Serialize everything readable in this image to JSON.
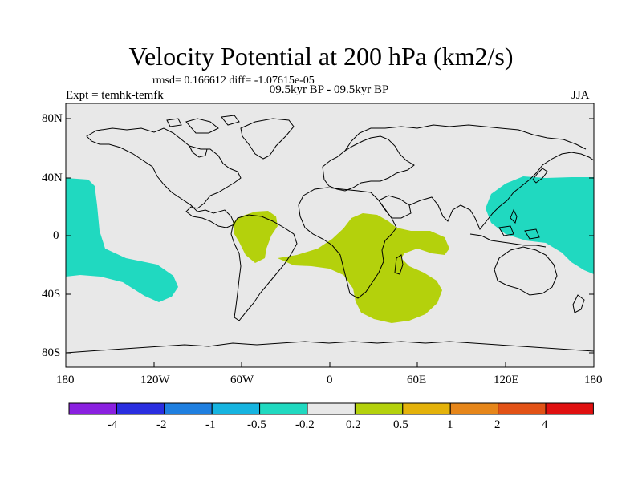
{
  "title": "Velocity Potential at 200 hPa (km2/s)",
  "stats_line": "rmsd= 0.166612 diff= -1.07615e-05",
  "left_label": "Expt = temhk-temfk",
  "center_label": "09.5kyr BP - 09.5kyr BP",
  "right_label": "JJA",
  "map": {
    "projection": "cylindrical equidistant",
    "lon_range": [
      -180,
      180
    ],
    "lat_range": [
      -90,
      90
    ],
    "lat_ticks": [
      "80N",
      "40N",
      "0",
      "40S",
      "80S"
    ],
    "lon_ticks": [
      "180",
      "120W",
      "60W",
      "0",
      "60E",
      "120E",
      "180"
    ],
    "background_color": "#e8e8e8",
    "regions": [
      {
        "name": "east-pacific-negative",
        "class": "-0.5 to -0.2",
        "color": "#20d9c0"
      },
      {
        "name": "west-pacific-negative",
        "class": "-0.5 to -0.2",
        "color": "#20d9c0"
      },
      {
        "name": "south-america-positive",
        "class": "0.2 to 0.5",
        "color": "#b4d10c"
      },
      {
        "name": "africa-indian-ocean-positive",
        "class": "0.2 to 0.5",
        "color": "#b4d10c"
      }
    ]
  },
  "colorbar": {
    "labels": [
      "-4",
      "-2",
      "-1",
      "-0.5",
      "-0.2",
      "0.2",
      "0.5",
      "1",
      "2",
      "4"
    ],
    "colors": [
      "#8a20e0",
      "#2a2ee0",
      "#1f7fe0",
      "#16b4e0",
      "#20d9c0",
      "#e8e8e8",
      "#b4d10c",
      "#e4b20a",
      "#e6861a",
      "#e25216",
      "#e01010"
    ]
  }
}
